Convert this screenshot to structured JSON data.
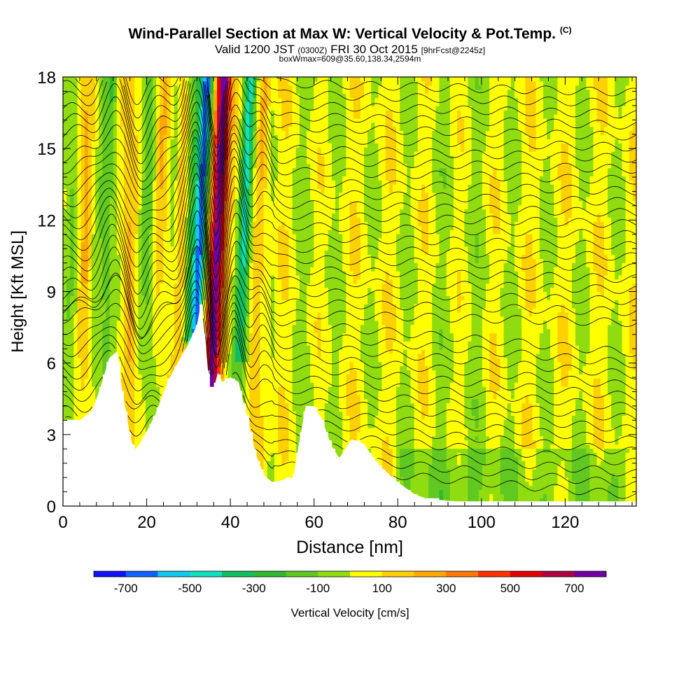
{
  "header": {
    "title": "Wind-Parallel Section at Max W: Vertical Velocity & Pot.Temp.",
    "copyright": "(C)",
    "valid_prefix": "Valid 1200 JST",
    "valid_utc": "(0300Z)",
    "valid_date": "FRI 30 Oct 2015",
    "forecast": "[9hrFcst@2245z]",
    "box_info": "boxWmax=609@35.60,138.34,2594m"
  },
  "chart_data": {
    "type": "heatmap",
    "xlabel": "Distance [nm]",
    "ylabel": "Height [Kft MSL]",
    "xlim": [
      0,
      137
    ],
    "ylim": [
      0,
      18
    ],
    "x_ticks": [
      "0",
      "20",
      "40",
      "60",
      "80",
      "100",
      "120"
    ],
    "y_ticks": [
      "0",
      "3",
      "6",
      "9",
      "12",
      "15",
      "18"
    ],
    "colorbar": {
      "label": "Vertical Velocity [cm/s]",
      "tick_labels": [
        "-700",
        "-500",
        "-300",
        "-100",
        "100",
        "300",
        "500",
        "700"
      ],
      "levels": [
        -800,
        -700,
        -600,
        -500,
        -400,
        -300,
        -200,
        -100,
        0,
        100,
        200,
        300,
        400,
        500,
        600,
        700,
        800
      ],
      "colors": [
        "#1010ff",
        "#1060ff",
        "#10c8f0",
        "#10e0c0",
        "#10c060",
        "#30b830",
        "#60c820",
        "#90dc10",
        "#ffff00",
        "#ffd000",
        "#ffa800",
        "#ff7800",
        "#ff3000",
        "#e00000",
        "#b00040",
        "#7000a0"
      ]
    },
    "terrain_kft": [
      [
        0,
        3.6
      ],
      [
        4,
        3.6
      ],
      [
        7,
        4.0
      ],
      [
        9,
        5.0
      ],
      [
        11,
        6.2
      ],
      [
        13,
        6.5
      ],
      [
        14,
        5.0
      ],
      [
        16,
        3.0
      ],
      [
        17,
        2.3
      ],
      [
        19,
        2.8
      ],
      [
        22,
        3.8
      ],
      [
        25,
        5.2
      ],
      [
        28,
        6.2
      ],
      [
        30,
        6.8
      ],
      [
        32,
        7.6
      ],
      [
        33,
        8.5
      ],
      [
        34,
        7.0
      ],
      [
        35,
        5.0
      ],
      [
        36,
        4.9
      ],
      [
        37,
        5.6
      ],
      [
        38,
        5.2
      ],
      [
        40,
        5.4
      ],
      [
        42,
        5.2
      ],
      [
        43,
        4.4
      ],
      [
        44,
        3.8
      ],
      [
        46,
        2.2
      ],
      [
        48,
        1.3
      ],
      [
        50,
        1.0
      ],
      [
        55,
        1.2
      ],
      [
        57,
        3.2
      ],
      [
        58,
        4.2
      ],
      [
        60,
        4.2
      ],
      [
        62,
        3.6
      ],
      [
        64,
        2.6
      ],
      [
        66,
        2.0
      ],
      [
        69,
        2.8
      ],
      [
        72,
        2.6
      ],
      [
        75,
        1.8
      ],
      [
        80,
        1.0
      ],
      [
        84,
        0.5
      ],
      [
        87,
        0.3
      ],
      [
        94,
        0.2
      ],
      [
        137,
        0.2
      ]
    ],
    "updraft_core": {
      "x": 37,
      "w_max": 800
    },
    "downdraft_core": {
      "x": 33,
      "w_min": -700
    },
    "isentrope_count": 36
  }
}
